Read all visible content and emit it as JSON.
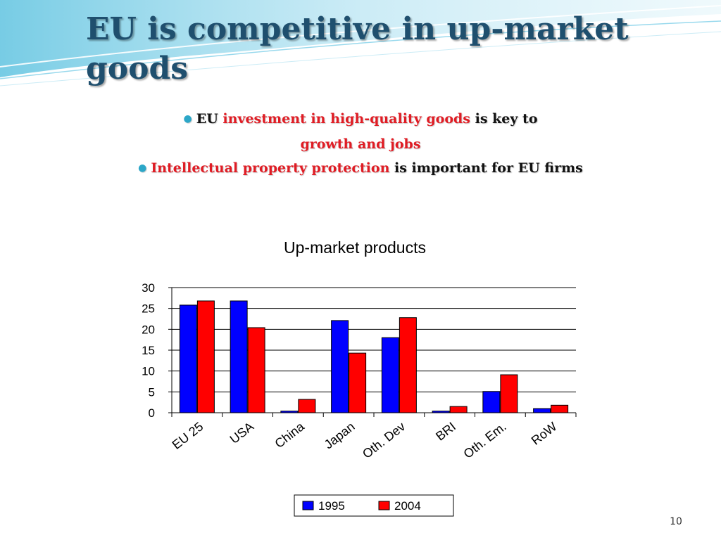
{
  "slide": {
    "title": "EU is competitive in up-market goods",
    "page_number": "10",
    "bullets": [
      {
        "line1_a": "EU ",
        "line1_b": "investment in high-quality goods",
        "line1_c": " is key to",
        "line2": "growth and jobs"
      },
      {
        "a": "Intellectual property protection",
        "b": " is important for EU firms"
      }
    ]
  },
  "colors": {
    "title": "#1f4f6e",
    "emphasis": "#e01c24",
    "bullet_dot": "#2ca7c8",
    "series_1995": "#0000ff",
    "series_2004": "#ff0000"
  },
  "chart_data": {
    "type": "bar",
    "title": "Up-market products",
    "categories": [
      "EU 25",
      "USA",
      "China",
      "Japan",
      "Oth. Dev",
      "BRI",
      "Oth. Em.",
      "RoW"
    ],
    "series": [
      {
        "name": "1995",
        "color": "#0000ff",
        "values": [
          25.8,
          26.8,
          0.4,
          22.1,
          18.0,
          0.4,
          5.1,
          1.0
        ]
      },
      {
        "name": "2004",
        "color": "#ff0000",
        "values": [
          26.8,
          20.4,
          3.2,
          14.3,
          22.8,
          1.5,
          9.1,
          1.8
        ]
      }
    ],
    "ylim": [
      0,
      30
    ],
    "yticks": [
      "0",
      "5",
      "10",
      "15",
      "20",
      "25",
      "30"
    ],
    "xlabel": "",
    "ylabel": "",
    "grid": true,
    "legend": "bottom"
  }
}
